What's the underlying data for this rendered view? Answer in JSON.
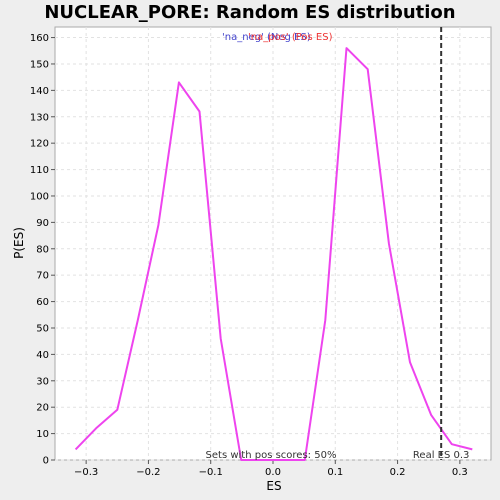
{
  "chart_data": {
    "type": "line",
    "title": "NUCLEAR_PORE: Random ES distribution",
    "xlabel": "ES",
    "ylabel": "P(ES)",
    "xlim": [
      -0.35,
      0.35
    ],
    "ylim": [
      0,
      164
    ],
    "x_ticks": [
      -0.3,
      -0.2,
      -0.1,
      0.0,
      0.1,
      0.2,
      0.3
    ],
    "x_tick_labels": [
      "−0.3",
      "−0.2",
      "−0.1",
      "0.0",
      "0.1",
      "0.2",
      "0.3"
    ],
    "y_ticks": [
      0,
      10,
      20,
      30,
      40,
      50,
      60,
      70,
      80,
      90,
      100,
      110,
      120,
      130,
      140,
      150,
      160
    ],
    "grid": true,
    "series": [
      {
        "name": "",
        "color": "#ee44ee",
        "x": [
          -0.317,
          -0.284,
          -0.25,
          -0.217,
          -0.184,
          -0.151,
          -0.118,
          -0.084,
          -0.051,
          -0.018,
          0.016,
          0.051,
          0.084,
          0.118,
          0.152,
          0.186,
          0.22,
          0.254,
          0.287,
          0.32
        ],
        "y": [
          4,
          12,
          19,
          53,
          89,
          143,
          132,
          46,
          0,
          0,
          0,
          0,
          53,
          156,
          148,
          82,
          37,
          17,
          6,
          4
        ]
      }
    ],
    "real_es": 0.27,
    "real_es_label": "Real ES 0.3",
    "footer_label": "Sets with pos scores: 50%",
    "legend": {
      "placement": "top-center",
      "items": [
        {
          "text": "'na_neg' (Neg ES)",
          "color": "#4444cc"
        },
        {
          "text": "'na_pos' (Pos ES)",
          "color": "#ee3333"
        }
      ]
    }
  }
}
